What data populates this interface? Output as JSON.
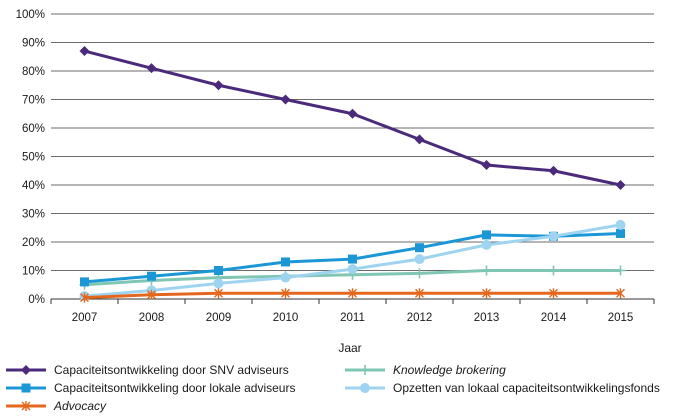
{
  "chart_data": {
    "type": "line",
    "xlabel": "Jaar",
    "ylabel": "",
    "ylim": [
      0,
      100
    ],
    "ytick_suffix": "%",
    "yticks": [
      0,
      10,
      20,
      30,
      40,
      50,
      60,
      70,
      80,
      90,
      100
    ],
    "categories": [
      "2007",
      "2008",
      "2009",
      "2010",
      "2011",
      "2012",
      "2013",
      "2014",
      "2015"
    ],
    "grid": true,
    "legend_position": "bottom",
    "series": [
      {
        "name": "Capaciteitsontwikkeling door SNV adviseurs",
        "color": "#4b2a7b",
        "marker": "diamond",
        "italic": false,
        "values": [
          87,
          81,
          75,
          70,
          65,
          56,
          47,
          45,
          40
        ]
      },
      {
        "name": "Knowledge brokering",
        "color": "#7fc6b3",
        "marker": "plus",
        "italic": true,
        "values": [
          5,
          6.5,
          7.5,
          8,
          8.5,
          9,
          10,
          10,
          10
        ]
      },
      {
        "name": "Capaciteitsontwikkeling door lokale adviseurs",
        "color": "#1b97d6",
        "marker": "square",
        "italic": false,
        "values": [
          6,
          8,
          10,
          13,
          14,
          18,
          22.5,
          22,
          23
        ]
      },
      {
        "name": "Opzetten van lokaal capaciteitsontwikkelingsfonds",
        "color": "#9ed4ef",
        "marker": "circle",
        "italic": false,
        "values": [
          1,
          3,
          5.5,
          7.5,
          10.5,
          14,
          19,
          22,
          26
        ]
      },
      {
        "name": "Advocacy",
        "color": "#e5671e",
        "marker": "star",
        "italic": true,
        "values": [
          0.5,
          1.5,
          2,
          2,
          2,
          2,
          2,
          2,
          2
        ]
      }
    ]
  }
}
